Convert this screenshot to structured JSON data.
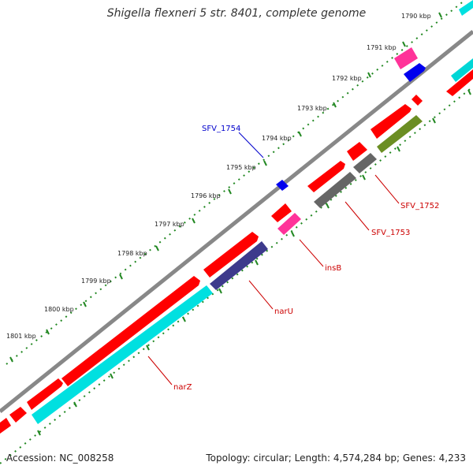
{
  "title": "Shigella flexneri 5 str. 8401, complete genome",
  "footer": {
    "accession": "Accession: NC_008258",
    "summary": "Topology: circular; Length: 4,574,284 bp; Genes: 4,233"
  },
  "scale": {
    "tick_labels": [
      "1790 kbp",
      "1791 kbp",
      "1792 kbp",
      "1793 kbp",
      "1794 kbp",
      "1795 kbp",
      "1796 kbp",
      "1797 kbp",
      "1798 kbp",
      "1799 kbp",
      "1800 kbp",
      "1801 kbp"
    ]
  },
  "gene_labels": [
    {
      "text": "SFV_1754",
      "color": "#0000cc"
    },
    {
      "text": "SFV_1752",
      "color": "#cc0000"
    },
    {
      "text": "SFV_1753",
      "color": "#cc0000"
    },
    {
      "text": "insB",
      "color": "#cc0000"
    },
    {
      "text": "narU",
      "color": "#cc0000"
    },
    {
      "text": "narZ",
      "color": "#cc0000"
    }
  ],
  "legend_colors": {
    "gene": "#ff0000",
    "cds_cyan": "#00e0e0",
    "cds_pink": "#ff3399",
    "cds_blue": "#0000ee",
    "cds_purple": "#3d3a8c",
    "cds_gray": "#666666",
    "cds_olive": "#6b8e23",
    "backbone": "#888888",
    "ticks": "#228822"
  }
}
